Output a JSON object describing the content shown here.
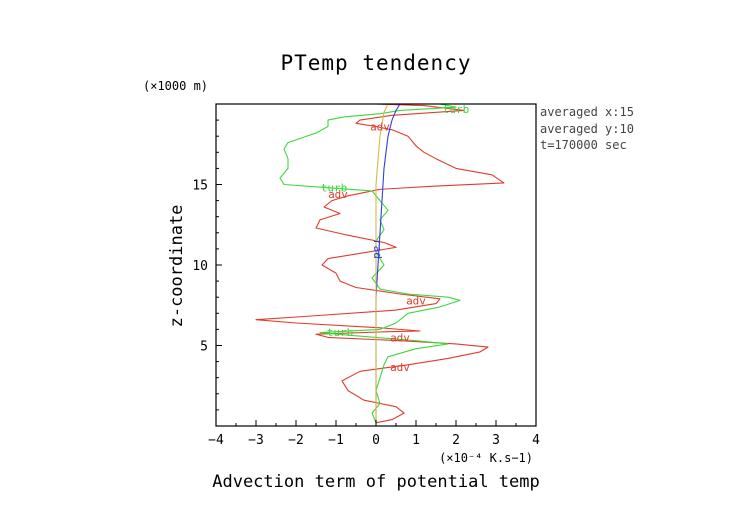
{
  "chart_data": {
    "type": "line",
    "title": "PTemp tendency",
    "xlabel": "Advection term of potential temp",
    "ylabel": "z-coordinate",
    "x_unit": "(×10⁻⁴ K.s−1)",
    "y_unit": "(×1000 m)",
    "xlim": [
      -4,
      4
    ],
    "ylim": [
      0,
      20
    ],
    "xticks": [
      "−4",
      "−3",
      "−2",
      "−1",
      "0",
      "1",
      "2",
      "3",
      "4"
    ],
    "yticks": [
      "5",
      "10",
      "15"
    ],
    "info": [
      "averaged  x:15",
      "averaged  y:10",
      "t=170000 sec"
    ],
    "colors": {
      "adv": "#e03c2c",
      "turb": "#3cd83c",
      "rad": "#2f3fd8",
      "extra": "#d8b84a"
    },
    "series": [
      {
        "name": "adv",
        "color": "#e03c2c",
        "points": [
          [
            0,
            0.2
          ],
          [
            0.4,
            0.4
          ],
          [
            0.7,
            0.8
          ],
          [
            0.5,
            1.2
          ],
          [
            -0.3,
            1.6
          ],
          [
            -0.7,
            2.2
          ],
          [
            -0.85,
            2.8
          ],
          [
            -0.4,
            3.4
          ],
          [
            0.8,
            3.8
          ],
          [
            1.8,
            4.2
          ],
          [
            2.6,
            4.6
          ],
          [
            2.8,
            4.9
          ],
          [
            2.0,
            5.1
          ],
          [
            0.6,
            5.3
          ],
          [
            -1.2,
            5.5
          ],
          [
            -1.5,
            5.7
          ],
          [
            0.2,
            5.85
          ],
          [
            1.1,
            5.9
          ],
          [
            0.1,
            6.1
          ],
          [
            -2.0,
            6.4
          ],
          [
            -3.0,
            6.6
          ],
          [
            -1.8,
            6.8
          ],
          [
            0.5,
            7.2
          ],
          [
            1.5,
            7.6
          ],
          [
            1.6,
            7.9
          ],
          [
            0.6,
            8.2
          ],
          [
            -0.5,
            8.6
          ],
          [
            -0.9,
            9.0
          ],
          [
            -1.0,
            9.5
          ],
          [
            -1.35,
            10.0
          ],
          [
            -1.2,
            10.4
          ],
          [
            -0.2,
            10.8
          ],
          [
            0.5,
            11.1
          ],
          [
            0.2,
            11.4
          ],
          [
            -0.8,
            11.9
          ],
          [
            -1.5,
            12.3
          ],
          [
            -1.4,
            12.8
          ],
          [
            -0.9,
            13.2
          ],
          [
            -1.3,
            13.6
          ],
          [
            -1.1,
            14.0
          ],
          [
            -0.7,
            14.3
          ],
          [
            0.1,
            14.7
          ],
          [
            1.5,
            14.9
          ],
          [
            3.2,
            15.1
          ],
          [
            2.9,
            15.6
          ],
          [
            2.0,
            16.0
          ],
          [
            1.5,
            16.6
          ],
          [
            1.2,
            17.0
          ],
          [
            1.0,
            17.4
          ],
          [
            0.8,
            18.0
          ],
          [
            0.4,
            18.4
          ],
          [
            0.0,
            18.6
          ],
          [
            -0.5,
            18.8
          ],
          [
            -0.4,
            19.0
          ],
          [
            0.4,
            19.3
          ],
          [
            2.2,
            19.6
          ],
          [
            1.2,
            19.9
          ],
          [
            0,
            20.0
          ]
        ]
      },
      {
        "name": "turb",
        "color": "#3cd83c",
        "points": [
          [
            0,
            0.2
          ],
          [
            -0.1,
            0.8
          ],
          [
            0.1,
            1.4
          ],
          [
            0.0,
            2.2
          ],
          [
            0.1,
            3.0
          ],
          [
            0.2,
            3.8
          ],
          [
            0.3,
            4.3
          ],
          [
            1.0,
            4.8
          ],
          [
            1.8,
            5.1
          ],
          [
            1.0,
            5.3
          ],
          [
            -0.5,
            5.6
          ],
          [
            -1.4,
            5.8
          ],
          [
            0.1,
            6.0
          ],
          [
            0.5,
            6.4
          ],
          [
            0.8,
            7.0
          ],
          [
            1.6,
            7.4
          ],
          [
            2.1,
            7.8
          ],
          [
            1.8,
            8.0
          ],
          [
            0.8,
            8.2
          ],
          [
            0.1,
            8.5
          ],
          [
            -0.1,
            9.2
          ],
          [
            0.2,
            10.0
          ],
          [
            0.0,
            10.8
          ],
          [
            0.0,
            11.5
          ],
          [
            0.2,
            12.2
          ],
          [
            0.1,
            12.8
          ],
          [
            0.3,
            13.4
          ],
          [
            0.1,
            14.0
          ],
          [
            -0.1,
            14.6
          ],
          [
            -1.2,
            14.8
          ],
          [
            -2.3,
            15.0
          ],
          [
            -2.4,
            15.4
          ],
          [
            -2.2,
            16.0
          ],
          [
            -2.2,
            16.6
          ],
          [
            -2.3,
            17.2
          ],
          [
            -2.2,
            17.6
          ],
          [
            -1.5,
            18.2
          ],
          [
            -1.2,
            18.6
          ],
          [
            -1.2,
            19.0
          ],
          [
            -0.8,
            19.2
          ],
          [
            0.1,
            19.4
          ],
          [
            0.6,
            19.6
          ],
          [
            2.0,
            19.8
          ],
          [
            1.6,
            20.0
          ]
        ]
      },
      {
        "name": "rad",
        "color": "#2f3fd8",
        "points": [
          [
            0,
            0.2
          ],
          [
            0.0,
            2.0
          ],
          [
            0.0,
            4.0
          ],
          [
            0.0,
            6.0
          ],
          [
            0.0,
            8.0
          ],
          [
            0.05,
            10.0
          ],
          [
            0.1,
            12.0
          ],
          [
            0.15,
            14.0
          ],
          [
            0.2,
            16.0
          ],
          [
            0.3,
            18.0
          ],
          [
            0.4,
            19.0
          ],
          [
            0.5,
            19.6
          ],
          [
            0.6,
            20.0
          ]
        ]
      },
      {
        "name": "",
        "color": "#d8b84a",
        "points": [
          [
            0,
            0.2
          ],
          [
            0.0,
            5.0
          ],
          [
            0.0,
            10.0
          ],
          [
            0.0,
            15.0
          ],
          [
            0.1,
            18.0
          ],
          [
            0.2,
            19.5
          ],
          [
            0.3,
            20.0
          ]
        ]
      }
    ],
    "inline_labels": [
      {
        "series": "turb",
        "text": "turb",
        "x": 2.0,
        "y": 19.7
      },
      {
        "series": "adv",
        "text": "adv",
        "x": 0.1,
        "y": 18.6
      },
      {
        "series": "turb",
        "text": "turb",
        "x": -1.05,
        "y": 14.8
      },
      {
        "series": "adv",
        "text": "adv",
        "x": -0.95,
        "y": 14.4
      },
      {
        "series": "rad",
        "text": "rad",
        "x": 0.05,
        "y": 11.0
      },
      {
        "series": "adv",
        "text": "adv",
        "x": 1.0,
        "y": 7.8
      },
      {
        "series": "turb",
        "text": "turb",
        "x": -0.9,
        "y": 5.85
      },
      {
        "series": "adv",
        "text": "adv",
        "x": 0.6,
        "y": 5.5
      },
      {
        "series": "adv",
        "text": "adv",
        "x": 0.6,
        "y": 3.65
      }
    ]
  }
}
